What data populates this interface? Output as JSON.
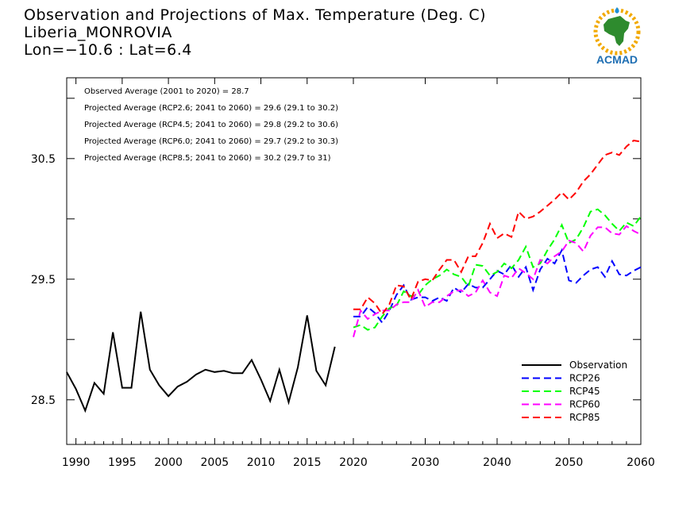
{
  "title": {
    "line1": "Observation and Projections of Max. Temperature (Deg. C)",
    "line2": "Liberia_MONROVIA",
    "line3": "Lon=−10.6 : Lat=6.4"
  },
  "logo": {
    "text": "ACMAD",
    "icon": "acmad-africa-logo-icon"
  },
  "annotations": [
    "Observed Average (2001 to 2020) = 28.7",
    "Projected Average (RCP2.6; 2041 to 2060) = 29.6 (29.1 to 30.2)",
    "Projected Average (RCP4.5; 2041 to 2060) = 29.8 (29.2 to 30.6)",
    "Projected Average (RCP6.0; 2041 to 2060) = 29.7 (29.2 to 30.3)",
    "Projected Average (RCP8.5; 2041 to 2060) = 30.2 (29.7 to 31)"
  ],
  "colors": {
    "observation": "#000000",
    "rcp26": "#0000ff",
    "rcp45": "#00ff00",
    "rcp60": "#ff00ff",
    "rcp85": "#ff0000"
  },
  "chart_data": {
    "type": "line",
    "title": "Observation and Projections of Max. Temperature (Deg. C)",
    "xlabel": "",
    "ylabel": "",
    "xlim": [
      1989,
      2060
    ],
    "ylim": [
      28.13,
      31.17
    ],
    "x_ticks": [
      1990,
      1995,
      2000,
      2005,
      2010,
      2015,
      2020,
      2030,
      2040,
      2050,
      2060
    ],
    "y_ticks": [
      28.5,
      29.5,
      30.5
    ],
    "legend_position": "bottom-right",
    "grid": false,
    "series": [
      {
        "name": "Observation",
        "style": "solid",
        "color": "#000000",
        "x": [
          1989,
          1990,
          1991,
          1992,
          1993,
          1994,
          1995,
          1996,
          1997,
          1998,
          1999,
          2000,
          2001,
          2002,
          2003,
          2004,
          2005,
          2006,
          2007,
          2008,
          2009,
          2010,
          2011,
          2012,
          2013,
          2014,
          2015,
          2016,
          2017,
          2018,
          2019
        ],
        "y": [
          28.73,
          28.59,
          28.41,
          28.64,
          28.55,
          29.06,
          28.6,
          28.6,
          29.23,
          28.75,
          28.62,
          28.53,
          28.61,
          28.65,
          28.71,
          28.75,
          28.73,
          28.74,
          28.72,
          28.72,
          28.83,
          28.67,
          28.49,
          28.75,
          28.48,
          28.77,
          29.2,
          28.74,
          28.62,
          28.94,
          null
        ]
      },
      {
        "name": "RCP26",
        "style": "dashed",
        "color": "#0000ff",
        "x": [
          2020,
          2021,
          2022,
          2023,
          2024,
          2025,
          2026,
          2027,
          2028,
          2029,
          2030,
          2031,
          2032,
          2033,
          2034,
          2035,
          2036,
          2037,
          2038,
          2039,
          2040,
          2041,
          2042,
          2043,
          2044,
          2045,
          2046,
          2047,
          2048,
          2049,
          2050,
          2051,
          2052,
          2053,
          2054,
          2055,
          2056,
          2057,
          2058,
          2059,
          2060
        ],
        "y": [
          29.19,
          29.19,
          29.27,
          29.22,
          29.14,
          29.24,
          29.37,
          29.45,
          29.33,
          29.35,
          29.35,
          29.32,
          29.35,
          29.32,
          29.43,
          29.39,
          29.46,
          29.43,
          29.43,
          29.5,
          29.57,
          29.54,
          29.62,
          29.52,
          29.6,
          29.41,
          29.58,
          29.67,
          29.63,
          29.74,
          29.49,
          29.47,
          29.53,
          29.58,
          29.6,
          29.52,
          29.65,
          29.54,
          29.53,
          29.57,
          29.6
        ]
      },
      {
        "name": "RCP45",
        "style": "dashed",
        "color": "#00ff00",
        "x": [
          2020,
          2021,
          2022,
          2023,
          2024,
          2025,
          2026,
          2027,
          2028,
          2029,
          2030,
          2031,
          2032,
          2033,
          2034,
          2035,
          2036,
          2037,
          2038,
          2039,
          2040,
          2041,
          2042,
          2043,
          2044,
          2045,
          2046,
          2047,
          2048,
          2049,
          2050,
          2051,
          2052,
          2053,
          2054,
          2055,
          2056,
          2057,
          2058,
          2059,
          2060
        ],
        "y": [
          29.1,
          29.12,
          29.08,
          29.1,
          29.19,
          29.26,
          29.28,
          29.4,
          29.36,
          29.37,
          29.45,
          29.5,
          29.53,
          29.58,
          29.54,
          29.52,
          29.44,
          29.62,
          29.61,
          29.53,
          29.56,
          29.63,
          29.59,
          29.66,
          29.77,
          29.6,
          29.63,
          29.74,
          29.83,
          29.95,
          29.8,
          29.83,
          29.93,
          30.06,
          30.08,
          30.03,
          29.96,
          29.9,
          29.97,
          29.94,
          30.02
        ]
      },
      {
        "name": "RCP60",
        "style": "dashed",
        "color": "#ff00ff",
        "x": [
          2020,
          2021,
          2022,
          2023,
          2024,
          2025,
          2026,
          2027,
          2028,
          2029,
          2030,
          2031,
          2032,
          2033,
          2034,
          2035,
          2036,
          2037,
          2038,
          2039,
          2040,
          2041,
          2042,
          2043,
          2044,
          2045,
          2046,
          2047,
          2048,
          2049,
          2050,
          2051,
          2052,
          2053,
          2054,
          2055,
          2056,
          2057,
          2058,
          2059,
          2060
        ],
        "y": [
          29.02,
          29.24,
          29.17,
          29.21,
          29.24,
          29.24,
          29.29,
          29.31,
          29.31,
          29.41,
          29.27,
          29.31,
          29.31,
          29.36,
          29.4,
          29.41,
          29.36,
          29.39,
          29.49,
          29.39,
          29.36,
          29.53,
          29.51,
          29.59,
          29.55,
          29.5,
          29.66,
          29.63,
          29.69,
          29.73,
          29.82,
          29.8,
          29.73,
          29.86,
          29.93,
          29.93,
          29.88,
          29.87,
          29.94,
          29.9,
          29.87
        ]
      },
      {
        "name": "RCP85",
        "style": "dashed",
        "color": "#ff0000",
        "x": [
          2020,
          2021,
          2022,
          2023,
          2024,
          2025,
          2026,
          2027,
          2028,
          2029,
          2030,
          2031,
          2032,
          2033,
          2034,
          2035,
          2036,
          2037,
          2038,
          2039,
          2040,
          2041,
          2042,
          2043,
          2044,
          2045,
          2046,
          2047,
          2048,
          2049,
          2050,
          2051,
          2052,
          2053,
          2054,
          2055,
          2056,
          2057,
          2058,
          2059,
          2060
        ],
        "y": [
          29.25,
          29.25,
          29.35,
          29.3,
          29.21,
          29.29,
          29.45,
          29.44,
          29.33,
          29.48,
          29.5,
          29.49,
          29.58,
          29.66,
          29.66,
          29.56,
          29.69,
          29.69,
          29.8,
          29.96,
          29.84,
          29.88,
          29.85,
          30.06,
          30.0,
          30.02,
          30.06,
          30.11,
          30.16,
          30.22,
          30.16,
          30.22,
          30.31,
          30.37,
          30.45,
          30.53,
          30.55,
          30.53,
          30.6,
          30.65,
          30.64
        ]
      }
    ]
  }
}
